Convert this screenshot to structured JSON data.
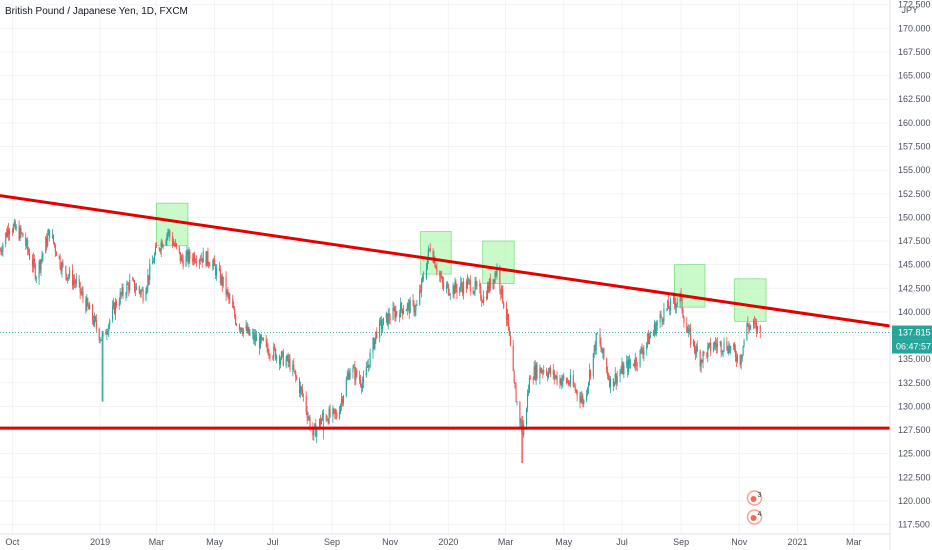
{
  "symbol_title": "British Pound / Japanese Yen, 1D, FXCM",
  "currency_label": "JPY",
  "last_price_label": "137.815",
  "countdown_label": "06:47:57",
  "colors": {
    "up": "#26a69a",
    "down": "#ef5350",
    "trendline": "#e50000",
    "highlight_fill": "#9ff59f",
    "price_tag": "#26a69a",
    "grid": "#f1f3f6",
    "axis_text": "#4c525e",
    "last_price_line": "#26a69a"
  },
  "events": [
    {
      "label": "3",
      "x": "2020-11-17"
    },
    {
      "label": "4",
      "x": "2020-11-17"
    }
  ],
  "chart_data": {
    "type": "candlestick",
    "title": "British Pound / Japanese Yen, 1D, FXCM",
    "ylabel": "JPY",
    "ylim": [
      116.5,
      173.0
    ],
    "xlim": [
      "2018-09-18",
      "2021-04-08"
    ],
    "y_scale": "linear",
    "grid": true,
    "y_ticks": [
      "117.500",
      "120.000",
      "122.500",
      "125.000",
      "127.500",
      "130.000",
      "132.500",
      "135.000",
      "137.500",
      "140.000",
      "142.500",
      "145.000",
      "147.500",
      "150.000",
      "152.500",
      "155.000",
      "157.500",
      "160.000",
      "162.500",
      "165.000",
      "167.500",
      "170.000",
      "172.500"
    ],
    "x_ticks": [
      {
        "label": "Oct",
        "x": "2018-10-01"
      },
      {
        "label": "2019",
        "x": "2019-01-01"
      },
      {
        "label": "Mar",
        "x": "2019-03-01"
      },
      {
        "label": "May",
        "x": "2019-05-01"
      },
      {
        "label": "Jul",
        "x": "2019-07-01"
      },
      {
        "label": "Sep",
        "x": "2019-09-01"
      },
      {
        "label": "Nov",
        "x": "2019-11-01"
      },
      {
        "label": "2020",
        "x": "2020-01-01"
      },
      {
        "label": "Mar",
        "x": "2020-03-01"
      },
      {
        "label": "May",
        "x": "2020-05-01"
      },
      {
        "label": "Jul",
        "x": "2020-07-01"
      },
      {
        "label": "Sep",
        "x": "2020-09-01"
      },
      {
        "label": "Nov",
        "x": "2020-11-01"
      },
      {
        "label": "2021",
        "x": "2021-01-01"
      },
      {
        "label": "Mar",
        "x": "2021-03-01"
      }
    ],
    "price_path": [
      {
        "x": "2018-09-18",
        "y": 146.5
      },
      {
        "x": "2018-09-28",
        "y": 149.2
      },
      {
        "x": "2018-10-12",
        "y": 148.0
      },
      {
        "x": "2018-10-26",
        "y": 144.0
      },
      {
        "x": "2018-11-09",
        "y": 148.5
      },
      {
        "x": "2018-11-23",
        "y": 144.5
      },
      {
        "x": "2018-12-07",
        "y": 143.0
      },
      {
        "x": "2018-12-21",
        "y": 140.0
      },
      {
        "x": "2019-01-03",
        "y": 137.0
      },
      {
        "x": "2019-01-18",
        "y": 141.0
      },
      {
        "x": "2019-02-01",
        "y": 143.0
      },
      {
        "x": "2019-02-15",
        "y": 142.0
      },
      {
        "x": "2019-03-01",
        "y": 146.5
      },
      {
        "x": "2019-03-13",
        "y": 148.5
      },
      {
        "x": "2019-03-27",
        "y": 145.5
      },
      {
        "x": "2019-04-12",
        "y": 146.0
      },
      {
        "x": "2019-04-26",
        "y": 145.5
      },
      {
        "x": "2019-05-10",
        "y": 143.0
      },
      {
        "x": "2019-05-24",
        "y": 139.0
      },
      {
        "x": "2019-06-07",
        "y": 137.5
      },
      {
        "x": "2019-06-21",
        "y": 136.5
      },
      {
        "x": "2019-07-05",
        "y": 135.5
      },
      {
        "x": "2019-07-19",
        "y": 134.5
      },
      {
        "x": "2019-08-02",
        "y": 131.0
      },
      {
        "x": "2019-08-12",
        "y": 127.0
      },
      {
        "x": "2019-08-23",
        "y": 129.0
      },
      {
        "x": "2019-09-06",
        "y": 129.0
      },
      {
        "x": "2019-09-20",
        "y": 134.0
      },
      {
        "x": "2019-10-04",
        "y": 132.5
      },
      {
        "x": "2019-10-18",
        "y": 138.0
      },
      {
        "x": "2019-10-31",
        "y": 139.5
      },
      {
        "x": "2019-11-15",
        "y": 140.5
      },
      {
        "x": "2019-11-29",
        "y": 140.5
      },
      {
        "x": "2019-12-13",
        "y": 147.0
      },
      {
        "x": "2019-12-27",
        "y": 142.5
      },
      {
        "x": "2020-01-10",
        "y": 142.5
      },
      {
        "x": "2020-01-24",
        "y": 143.0
      },
      {
        "x": "2020-02-07",
        "y": 141.5
      },
      {
        "x": "2020-02-21",
        "y": 144.5
      },
      {
        "x": "2020-03-03",
        "y": 139.0
      },
      {
        "x": "2020-03-10",
        "y": 132.0
      },
      {
        "x": "2020-03-19",
        "y": 127.0
      },
      {
        "x": "2020-03-27",
        "y": 133.5
      },
      {
        "x": "2020-04-10",
        "y": 134.0
      },
      {
        "x": "2020-04-24",
        "y": 133.0
      },
      {
        "x": "2020-05-08",
        "y": 132.5
      },
      {
        "x": "2020-05-22",
        "y": 130.5
      },
      {
        "x": "2020-06-05",
        "y": 137.5
      },
      {
        "x": "2020-06-19",
        "y": 132.5
      },
      {
        "x": "2020-07-03",
        "y": 134.0
      },
      {
        "x": "2020-07-17",
        "y": 135.0
      },
      {
        "x": "2020-07-31",
        "y": 137.5
      },
      {
        "x": "2020-08-14",
        "y": 140.0
      },
      {
        "x": "2020-08-31",
        "y": 141.5
      },
      {
        "x": "2020-09-07",
        "y": 138.0
      },
      {
        "x": "2020-09-21",
        "y": 135.0
      },
      {
        "x": "2020-10-05",
        "y": 136.5
      },
      {
        "x": "2020-10-19",
        "y": 136.5
      },
      {
        "x": "2020-11-02",
        "y": 135.0
      },
      {
        "x": "2020-11-09",
        "y": 138.5
      },
      {
        "x": "2020-11-16",
        "y": 138.5
      },
      {
        "x": "2020-11-23",
        "y": 137.8
      }
    ],
    "spikes": [
      {
        "x": "2019-01-03",
        "low": 130.5,
        "high": 138.0
      },
      {
        "x": "2019-08-23",
        "low": 126.5,
        "high": 129.5
      },
      {
        "x": "2020-03-18",
        "low": 124.0,
        "high": 129.0
      }
    ],
    "lines": [
      {
        "type": "trendline",
        "from": {
          "x": "2018-09-18",
          "y": 152.3
        },
        "to": {
          "x": "2021-04-08",
          "y": 138.5
        }
      },
      {
        "type": "horizontal",
        "from": {
          "x": "2018-09-18",
          "y": 127.7
        },
        "to": {
          "x": "2021-04-08",
          "y": 127.7
        }
      }
    ],
    "highlight_boxes": [
      {
        "x0": "2019-03-01",
        "x1": "2019-04-03",
        "y0": 147.0,
        "y1": 151.5
      },
      {
        "x0": "2019-12-03",
        "x1": "2020-01-04",
        "y0": 144.0,
        "y1": 148.5
      },
      {
        "x0": "2020-02-06",
        "x1": "2020-03-10",
        "y0": 143.0,
        "y1": 147.5
      },
      {
        "x0": "2020-08-25",
        "x1": "2020-09-26",
        "y0": 140.5,
        "y1": 145.0
      },
      {
        "x0": "2020-10-27",
        "x1": "2020-11-29",
        "y0": 139.0,
        "y1": 143.5
      }
    ],
    "last_price": 137.815
  }
}
